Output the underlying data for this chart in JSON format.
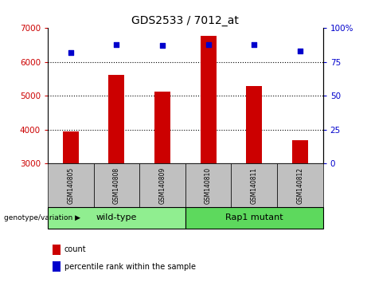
{
  "title": "GDS2533 / 7012_at",
  "samples": [
    "GSM140805",
    "GSM140808",
    "GSM140809",
    "GSM140810",
    "GSM140811",
    "GSM140812"
  ],
  "counts": [
    3950,
    5620,
    5130,
    6780,
    5280,
    3680
  ],
  "percentile_ranks": [
    82,
    88,
    87,
    88,
    88,
    83
  ],
  "ylim_left": [
    3000,
    7000
  ],
  "ylim_right": [
    0,
    100
  ],
  "yticks_left": [
    3000,
    4000,
    5000,
    6000,
    7000
  ],
  "yticks_right": [
    0,
    25,
    50,
    75,
    100
  ],
  "ytick_right_labels": [
    "0",
    "25",
    "50",
    "75",
    "100%"
  ],
  "groups": [
    {
      "label": "wild-type",
      "start": 0,
      "end": 2,
      "color": "#90EE90"
    },
    {
      "label": "Rap1 mutant",
      "start": 3,
      "end": 5,
      "color": "#5DD95D"
    }
  ],
  "bar_color": "#CC0000",
  "dot_color": "#0000CC",
  "bar_width": 0.35,
  "grid_color": "#000000",
  "tick_color_left": "#CC0000",
  "tick_color_right": "#0000CC",
  "title_color": "#000000",
  "bg_plot": "#FFFFFF",
  "bg_sample_cells": "#C0C0C0",
  "legend_count": "count",
  "legend_percentile": "percentile rank within the sample",
  "group_axis_label": "genotype/variation"
}
